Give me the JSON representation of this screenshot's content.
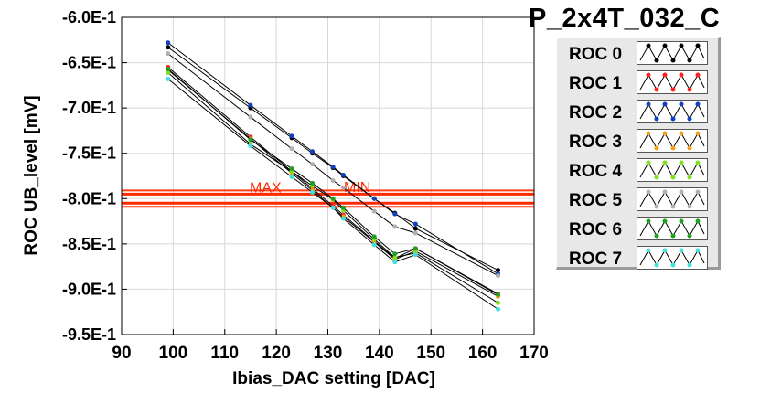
{
  "chart_data": {
    "type": "line",
    "title": "P_2x4T_032_C",
    "xlabel": "Ibias_DAC setting [DAC]",
    "ylabel": "ROC UB_level [mV]",
    "xlim": [
      90,
      170
    ],
    "ylim": [
      -0.95,
      -0.6
    ],
    "x_ticks": [
      "90",
      "100",
      "110",
      "120",
      "130",
      "140",
      "150",
      "160",
      "170"
    ],
    "y_ticks": [
      "-6.0E-1",
      "-6.5E-1",
      "-7.0E-1",
      "-7.5E-1",
      "-8.0E-1",
      "-8.5E-1",
      "-9.0E-1",
      "-9.5E-1"
    ],
    "grid": true,
    "legend_placement": "right",
    "reference_lines": [
      {
        "label": "MAX",
        "y": -0.795,
        "color": "#ff2a00"
      },
      {
        "label": "MIN",
        "y": -0.805,
        "color": "#ff2a00"
      }
    ],
    "x": [
      99,
      115,
      123,
      127,
      131,
      133,
      139,
      143,
      147,
      163
    ],
    "series": [
      {
        "name": "ROC 0",
        "color": "#000000",
        "values": [
          -0.633,
          -0.7,
          -0.733,
          -0.75,
          -0.766,
          -0.775,
          -0.8,
          -0.816,
          -0.833,
          -0.879
        ]
      },
      {
        "name": "ROC 1",
        "color": "#ff2020",
        "values": [
          -0.655,
          -0.732,
          -0.77,
          -0.789,
          -0.808,
          -0.818,
          -0.847,
          -0.866,
          -0.855,
          -0.905
        ]
      },
      {
        "name": "ROC 2",
        "color": "#1040c0",
        "values": [
          -0.628,
          -0.697,
          -0.731,
          -0.748,
          -0.765,
          -0.774,
          -0.8,
          -0.817,
          -0.828,
          -0.883
        ]
      },
      {
        "name": "ROC 3",
        "color": "#f0a020",
        "values": [
          -0.658,
          -0.734,
          -0.772,
          -0.791,
          -0.81,
          -0.82,
          -0.848,
          -0.867,
          -0.858,
          -0.908
        ]
      },
      {
        "name": "ROC 4",
        "color": "#80e020",
        "values": [
          -0.661,
          -0.74,
          -0.77,
          -0.786,
          -0.801,
          -0.813,
          -0.845,
          -0.865,
          -0.86,
          -0.915
        ]
      },
      {
        "name": "ROC 5",
        "color": "#b0b0b0",
        "values": [
          -0.64,
          -0.71,
          -0.745,
          -0.762,
          -0.78,
          -0.788,
          -0.814,
          -0.831,
          -0.838,
          -0.885
        ]
      },
      {
        "name": "ROC 6",
        "color": "#20a020",
        "values": [
          -0.657,
          -0.735,
          -0.767,
          -0.783,
          -0.8,
          -0.81,
          -0.842,
          -0.861,
          -0.855,
          -0.906
        ]
      },
      {
        "name": "ROC 7",
        "color": "#40e0e0",
        "values": [
          -0.668,
          -0.742,
          -0.776,
          -0.793,
          -0.81,
          -0.822,
          -0.851,
          -0.87,
          -0.862,
          -0.922
        ]
      }
    ]
  }
}
